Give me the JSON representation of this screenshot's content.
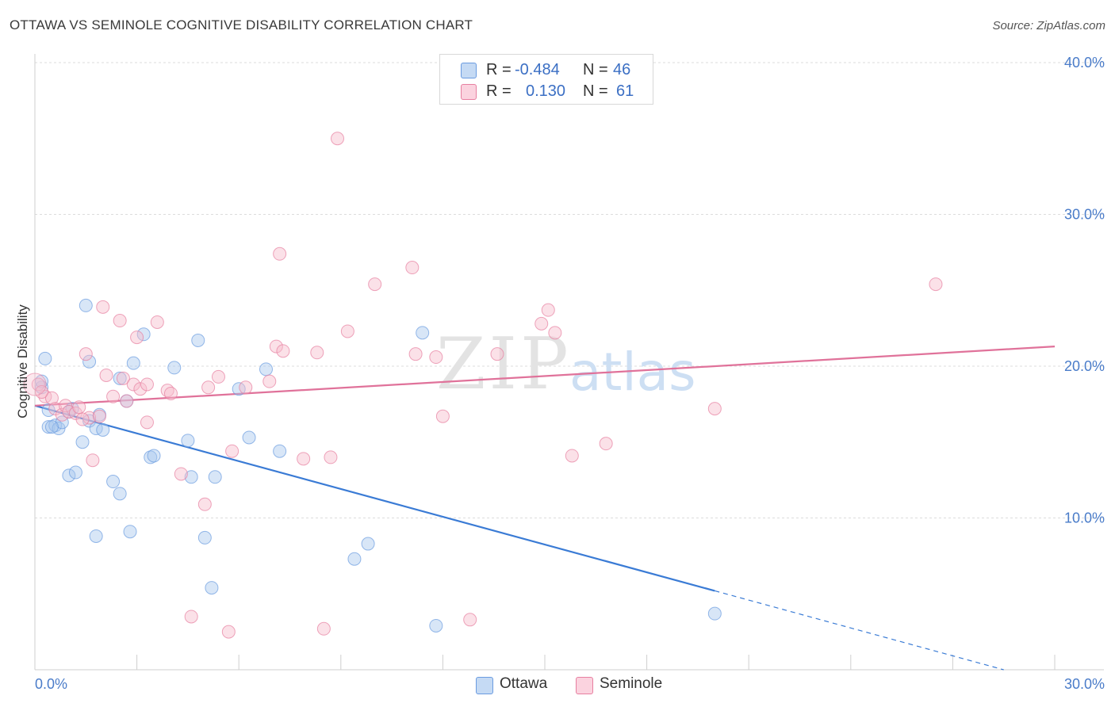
{
  "title": "OTTAWA VS SEMINOLE COGNITIVE DISABILITY CORRELATION CHART",
  "source": "Source: ZipAtlas.com",
  "watermark": {
    "zip": "ZIP",
    "atlas": "atlas"
  },
  "legend": {
    "rows": [
      {
        "r_label": "R =",
        "r_value": "-0.484",
        "n_label": "N =",
        "n_value": "46",
        "color": "#a9c7ee"
      },
      {
        "r_label": "R =",
        "r_value": "0.130",
        "n_label": "N =",
        "n_value": "61",
        "color": "#f6bccd"
      }
    ]
  },
  "bottom_legend": [
    {
      "label": "Ottawa",
      "color": "#a9c7ee"
    },
    {
      "label": "Seminole",
      "color": "#f6bccd"
    }
  ],
  "chart_data": {
    "type": "scatter",
    "title": "OTTAWA VS SEMINOLE COGNITIVE DISABILITY CORRELATION CHART",
    "xlabel": "",
    "ylabel": "Cognitive Disability",
    "xlim": [
      0,
      30
    ],
    "ylim": [
      0,
      40
    ],
    "x_tick_labels": [
      "0.0%",
      "30.0%"
    ],
    "y_ticks": [
      10,
      20,
      30,
      40
    ],
    "y_tick_labels": [
      "10.0%",
      "20.0%",
      "30.0%",
      "40.0%"
    ],
    "grid": true,
    "series": [
      {
        "name": "Ottawa",
        "color": "#6a9be0",
        "fill": "#a9c7ee",
        "points": [
          [
            0.2,
            18.6
          ],
          [
            0.3,
            20.5
          ],
          [
            0.4,
            17.1
          ],
          [
            0.4,
            16.0
          ],
          [
            0.6,
            16.1
          ],
          [
            0.7,
            15.9
          ],
          [
            0.8,
            16.3
          ],
          [
            1.0,
            17.0
          ],
          [
            1.0,
            12.8
          ],
          [
            1.2,
            13.0
          ],
          [
            1.4,
            15.0
          ],
          [
            1.5,
            24.0
          ],
          [
            1.6,
            16.4
          ],
          [
            1.6,
            20.3
          ],
          [
            1.8,
            8.8
          ],
          [
            1.8,
            15.9
          ],
          [
            1.9,
            16.8
          ],
          [
            2.0,
            15.8
          ],
          [
            2.3,
            12.4
          ],
          [
            2.5,
            11.6
          ],
          [
            2.5,
            19.2
          ],
          [
            2.7,
            17.7
          ],
          [
            2.8,
            9.1
          ],
          [
            2.9,
            20.2
          ],
          [
            3.2,
            22.1
          ],
          [
            3.4,
            14.0
          ],
          [
            3.5,
            14.1
          ],
          [
            4.1,
            19.9
          ],
          [
            4.5,
            15.1
          ],
          [
            4.6,
            12.7
          ],
          [
            4.8,
            21.7
          ],
          [
            5.0,
            8.7
          ],
          [
            5.2,
            5.4
          ],
          [
            5.3,
            12.7
          ],
          [
            6.0,
            18.5
          ],
          [
            6.3,
            15.3
          ],
          [
            6.8,
            19.8
          ],
          [
            7.2,
            14.4
          ],
          [
            9.4,
            7.3
          ],
          [
            9.8,
            8.3
          ],
          [
            11.4,
            22.2
          ],
          [
            11.8,
            2.9
          ],
          [
            20.0,
            3.7
          ],
          [
            0.2,
            19.0
          ],
          [
            1.1,
            17.2
          ],
          [
            0.5,
            16.0
          ]
        ],
        "trend": {
          "x0": 0,
          "y0": 17.4,
          "x1": 20.0,
          "y1": 5.2,
          "dash_x1": 28.5,
          "dash_y1": 0
        }
      },
      {
        "name": "Seminole",
        "color": "#e77fa0",
        "fill": "#f6bccd",
        "points": [
          [
            0.1,
            18.8
          ],
          [
            0.3,
            18.0
          ],
          [
            0.5,
            17.9
          ],
          [
            0.6,
            17.2
          ],
          [
            0.8,
            16.8
          ],
          [
            0.9,
            17.4
          ],
          [
            1.0,
            17.0
          ],
          [
            1.2,
            16.9
          ],
          [
            1.3,
            17.3
          ],
          [
            1.5,
            20.8
          ],
          [
            1.6,
            16.6
          ],
          [
            1.7,
            13.8
          ],
          [
            1.9,
            16.7
          ],
          [
            2.0,
            23.9
          ],
          [
            2.1,
            19.4
          ],
          [
            2.3,
            18.0
          ],
          [
            2.5,
            23.0
          ],
          [
            2.6,
            19.2
          ],
          [
            2.7,
            17.7
          ],
          [
            2.9,
            18.8
          ],
          [
            3.0,
            21.9
          ],
          [
            3.1,
            18.5
          ],
          [
            3.3,
            18.8
          ],
          [
            3.3,
            16.3
          ],
          [
            3.6,
            22.9
          ],
          [
            3.9,
            18.4
          ],
          [
            4.0,
            18.2
          ],
          [
            4.3,
            12.9
          ],
          [
            4.6,
            3.5
          ],
          [
            5.0,
            10.9
          ],
          [
            5.1,
            18.6
          ],
          [
            5.4,
            19.3
          ],
          [
            5.7,
            2.5
          ],
          [
            5.8,
            14.4
          ],
          [
            6.2,
            18.6
          ],
          [
            6.9,
            19.0
          ],
          [
            7.1,
            21.3
          ],
          [
            7.2,
            27.4
          ],
          [
            7.3,
            21.0
          ],
          [
            7.9,
            13.9
          ],
          [
            8.3,
            20.9
          ],
          [
            8.5,
            2.7
          ],
          [
            8.7,
            14.0
          ],
          [
            8.9,
            35.0
          ],
          [
            9.2,
            22.3
          ],
          [
            10.0,
            25.4
          ],
          [
            11.1,
            26.5
          ],
          [
            11.2,
            20.8
          ],
          [
            11.8,
            20.6
          ],
          [
            12.8,
            3.3
          ],
          [
            12.0,
            16.7
          ],
          [
            13.6,
            20.8
          ],
          [
            14.9,
            22.8
          ],
          [
            15.1,
            23.7
          ],
          [
            15.3,
            22.2
          ],
          [
            15.8,
            14.1
          ],
          [
            16.8,
            14.9
          ],
          [
            20.0,
            17.2
          ],
          [
            26.5,
            25.4
          ],
          [
            0.2,
            18.3
          ],
          [
            1.4,
            16.5
          ]
        ],
        "trend": {
          "x0": 0,
          "y0": 17.4,
          "x1": 30.0,
          "y1": 21.3
        }
      }
    ]
  }
}
